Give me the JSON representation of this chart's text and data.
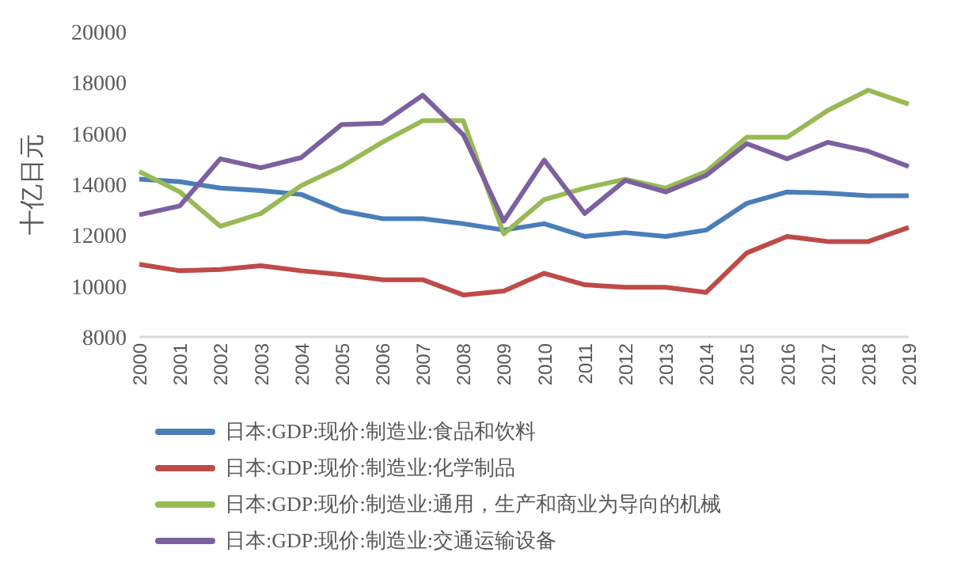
{
  "chart_data": {
    "type": "line",
    "ylabel": "十亿日元",
    "categories": [
      "2000",
      "2001",
      "2002",
      "2003",
      "2004",
      "2005",
      "2006",
      "2007",
      "2008",
      "2009",
      "2010",
      "2011",
      "2012",
      "2013",
      "2014",
      "2015",
      "2016",
      "2017",
      "2018",
      "2019"
    ],
    "series": [
      {
        "name": "日本:GDP:现价:制造业:食品和饮料",
        "color": "#4a7ebb",
        "values": [
          14200,
          14100,
          13850,
          13750,
          13600,
          12950,
          12650,
          12650,
          12450,
          12200,
          12450,
          11950,
          12100,
          11950,
          12200,
          13250,
          13700,
          13650,
          13550,
          13550
        ]
      },
      {
        "name": "日本:GDP:现价:制造业:化学制品",
        "color": "#be4b48",
        "values": [
          10850,
          10600,
          10650,
          10800,
          10600,
          10450,
          10250,
          10250,
          9650,
          9800,
          10500,
          10050,
          9950,
          9950,
          9750,
          11300,
          11950,
          11750,
          11750,
          12300
        ]
      },
      {
        "name": "日本:GDP:现价:制造业:通用，生产和商业为导向的机械",
        "color": "#98b954",
        "values": [
          14500,
          13700,
          12350,
          12850,
          13950,
          14700,
          15650,
          16500,
          16500,
          12050,
          13400,
          13850,
          14200,
          13850,
          14500,
          15850,
          15850,
          16900,
          17700,
          17150
        ]
      },
      {
        "name": "日本:GDP:现价:制造业:交通运输设备",
        "color": "#7d60a0",
        "values": [
          12800,
          13150,
          15000,
          14650,
          15050,
          16350,
          16400,
          17500,
          15950,
          12550,
          14950,
          12850,
          14150,
          13700,
          14350,
          15600,
          15000,
          15650,
          15300,
          14700
        ]
      }
    ],
    "ylim": [
      8000,
      20000
    ],
    "yticks": [
      8000,
      10000,
      12000,
      14000,
      16000,
      18000,
      20000
    ],
    "grid": false,
    "legend": "bottom",
    "marker": "none",
    "line_style": "solid"
  }
}
